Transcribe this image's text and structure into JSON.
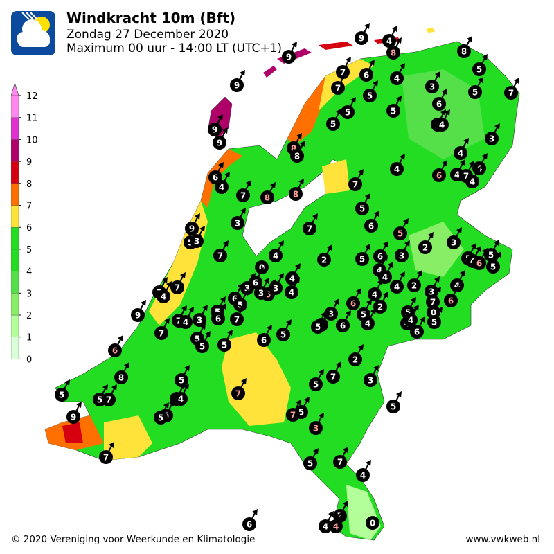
{
  "header": {
    "title": "Windkracht 10m (Bft)",
    "date": "Zondag 27 December 2020",
    "period": "Maximum 00 uur - 14:00 LT (UTC+1)"
  },
  "logo_icon": "cloud-sun-wind-icon",
  "legend": {
    "ticks": [
      "0",
      "1",
      "2",
      "3",
      "4",
      "5",
      "6",
      "7",
      "8",
      "9",
      "10",
      "11",
      "12"
    ],
    "colors": [
      "#d9ffd9",
      "#b3ff9a",
      "#88ee66",
      "#55e04a",
      "#22dd22",
      "#22dd22",
      "#ffe33a",
      "#ff7000",
      "#d40010",
      "#b0006a",
      "#e030d0",
      "#ff88ee"
    ]
  },
  "stations": [
    9,
    4,
    8,
    9,
    8,
    5,
    7,
    6,
    4,
    7,
    9,
    5,
    3,
    5,
    7,
    5,
    5,
    5,
    6,
    2,
    4,
    3,
    9,
    9,
    8,
    8,
    4,
    4,
    6,
    4,
    7,
    4,
    4,
    6,
    4,
    7,
    7,
    8,
    8,
    5,
    3,
    7,
    6,
    5,
    9,
    5,
    3,
    2,
    3,
    7,
    4,
    2,
    5,
    6,
    3,
    5,
    4,
    6,
    5,
    5,
    0,
    4,
    4,
    4,
    7,
    7,
    4,
    3,
    6,
    3,
    6,
    3,
    4,
    4,
    2,
    4,
    3,
    4,
    7,
    6,
    6,
    5,
    2,
    9,
    6,
    0,
    5,
    7,
    4,
    3,
    6,
    7,
    3,
    3,
    5,
    6,
    5,
    4,
    5,
    4,
    4,
    5,
    6,
    7,
    5,
    5,
    5,
    6,
    5,
    6,
    2,
    8,
    5,
    7,
    3,
    5,
    7,
    5,
    5,
    7,
    4,
    4,
    5,
    5,
    7,
    5,
    5,
    9,
    3,
    7,
    5,
    7,
    4,
    7,
    4,
    4,
    0,
    6
  ],
  "footer": {
    "copyright": "© 2020 Vereniging voor Weerkunde en Klimatologie",
    "site": "www.vwkweb.nl"
  }
}
